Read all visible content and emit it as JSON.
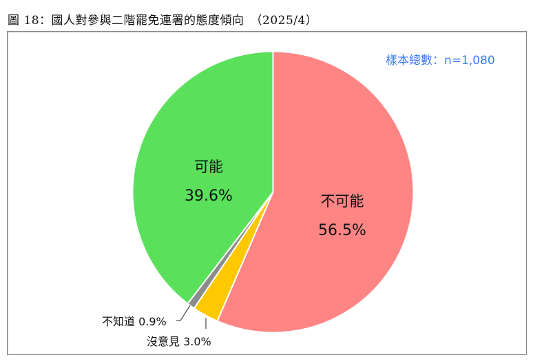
{
  "figure": {
    "title": "圖 18：國人對參與二階罷免連署的態度傾向　（2025/4）"
  },
  "sample_size": "樣本總數：n=1,080",
  "labels": {
    "unlikely_name": "不可能",
    "unlikely_pct": "56.5%",
    "likely_name": "可能",
    "likely_pct": "39.6%",
    "no_opinion": "沒意見 3.0%",
    "dont_know": "不知道 0.9%"
  },
  "chart_data": {
    "type": "pie",
    "title": "國人對參與二階罷免連署的態度傾向 (2025/4)",
    "subtitle": "樣本總數：n=1,080",
    "start_angle": "12 o'clock, clockwise",
    "categories": [
      "不可能",
      "沒意見",
      "不知道",
      "可能"
    ],
    "values": [
      56.5,
      3.0,
      0.9,
      39.6
    ],
    "colors": [
      "#FF8585",
      "#FFC800",
      "#8C8C8C",
      "#5AE05A"
    ],
    "units": "%",
    "legend": "none (labels on/next to slices)"
  }
}
